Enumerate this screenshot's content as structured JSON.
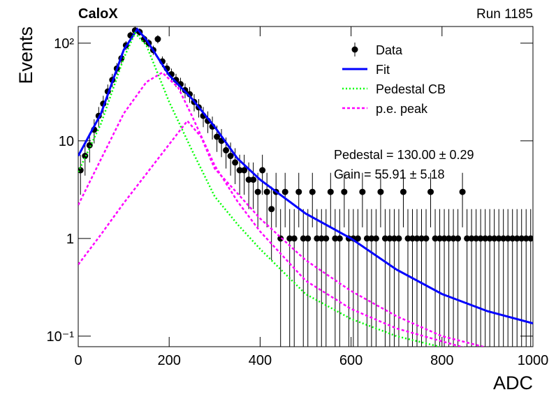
{
  "chart_data": {
    "type": "scatter",
    "title": "CaloX",
    "subtitle": "Run 1185",
    "x_label": "ADC",
    "y_label": "Events",
    "log_y": true,
    "xlim": [
      0,
      1000
    ],
    "xticks": [
      0,
      200,
      400,
      600,
      800,
      1000
    ],
    "ylim": [
      0.078,
      148
    ],
    "yticks": [
      {
        "value": 0.1,
        "label": "10⁻¹"
      },
      1,
      10,
      {
        "value": 100,
        "label": "10²"
      }
    ],
    "legend": "upper right",
    "annotations": [
      "Pedestal = 130.00 ± 0.29",
      "Gain = 55.91 ± 5.18"
    ],
    "series": [
      {
        "name": "Data",
        "type": "errorbar",
        "color": "#000000",
        "x": [
          5,
          15,
          25,
          35,
          45,
          55,
          65,
          75,
          85,
          95,
          105,
          115,
          125,
          135,
          145,
          155,
          165,
          175,
          185,
          195,
          205,
          215,
          225,
          235,
          245,
          255,
          265,
          275,
          285,
          295,
          305,
          315,
          325,
          335,
          345,
          355,
          365,
          375,
          385,
          395,
          405,
          415,
          425,
          435,
          445,
          455,
          465,
          475,
          485,
          495,
          505,
          515,
          525,
          535,
          545,
          555,
          565,
          575,
          585,
          595,
          605,
          615,
          625,
          635,
          645,
          655,
          665,
          675,
          685,
          695,
          705,
          715,
          725,
          735,
          745,
          755,
          765,
          775,
          785,
          795,
          805,
          815,
          825,
          835,
          845,
          855,
          865,
          875,
          885,
          895,
          905,
          915,
          925,
          935,
          945,
          955,
          965,
          975,
          985,
          995
        ],
        "values": [
          5,
          7,
          9,
          13,
          18,
          24,
          32,
          42,
          55,
          70,
          95,
          120,
          135,
          130,
          110,
          100,
          85,
          110,
          65,
          55,
          48,
          42,
          38,
          33,
          30,
          25,
          22,
          18,
          16,
          14,
          11,
          10,
          8,
          7,
          6,
          5,
          5,
          4,
          4,
          3,
          5,
          3,
          2,
          3,
          1,
          3,
          1,
          1,
          3,
          1,
          1,
          3,
          1,
          1,
          1,
          3,
          1,
          1,
          3,
          1,
          1,
          1,
          3,
          1,
          1,
          1,
          3,
          1,
          1,
          1,
          1,
          3,
          1,
          1,
          1,
          1,
          1,
          3,
          1,
          1,
          1,
          1,
          1,
          1,
          3,
          1,
          1,
          1,
          1,
          1,
          1,
          1,
          1,
          1,
          1,
          1,
          1,
          1,
          1,
          1
        ],
        "errors": [
          2.2,
          2.6,
          3,
          3.6,
          4.2,
          4.9,
          5.7,
          6.5,
          7.4,
          8.4,
          9.7,
          11,
          11.6,
          11.4,
          10.5,
          10,
          9.2,
          10.5,
          8.1,
          7.4,
          6.9,
          6.5,
          6.2,
          5.7,
          5.5,
          5,
          4.7,
          4.2,
          4,
          3.7,
          3.3,
          3.2,
          2.8,
          2.6,
          2.4,
          2.2,
          2.2,
          2,
          2,
          1.7,
          2.2,
          1.7,
          1.4,
          1.7,
          1,
          1.7,
          1,
          1,
          1.7,
          1,
          1,
          1.7,
          1,
          1,
          1,
          1.7,
          1,
          1,
          1.7,
          1,
          1,
          1,
          1.7,
          1,
          1,
          1,
          1.7,
          1,
          1,
          1,
          1,
          1.7,
          1,
          1,
          1,
          1,
          1,
          1.7,
          1,
          1,
          1,
          1,
          1,
          1,
          1.7,
          1,
          1,
          1,
          1,
          1,
          1,
          1,
          1,
          1,
          1,
          1,
          1,
          1,
          1,
          1
        ]
      },
      {
        "name": "Fit",
        "type": "line",
        "color": "#0000ff",
        "dash": "solid",
        "x": [
          0,
          50,
          100,
          130,
          150,
          200,
          250,
          300,
          350,
          400,
          500,
          600,
          700,
          800,
          900,
          1000
        ],
        "values": [
          7,
          19,
          85,
          139,
          108,
          47,
          27,
          13.9,
          6.6,
          4,
          1.8,
          1,
          0.48,
          0.27,
          0.18,
          0.135
        ]
      },
      {
        "name": "Pedestal CB",
        "type": "line",
        "color": "#00ff00",
        "dash": "dotted",
        "x": [
          0,
          50,
          100,
          125,
          150,
          200,
          250,
          300,
          350,
          400,
          500,
          600,
          700,
          800
        ],
        "values": [
          4.8,
          15,
          70,
          127,
          95,
          25,
          8,
          2.7,
          1.4,
          0.78,
          0.27,
          0.15,
          0.1,
          0.077
        ]
      },
      {
        "name": "p.e. peak",
        "type": "line",
        "color": "#ff00ff",
        "dash": "dashed",
        "curves": [
          {
            "x": [
              0,
              50,
              100,
              150,
              185,
              220,
              250,
              300,
              350,
              400,
              500,
              600,
              700,
              850
            ],
            "values": [
              2.2,
              6.5,
              19,
              40,
              50,
              35,
              18,
              5.6,
              2.4,
              1.18,
              0.37,
              0.19,
              0.12,
              0.076
            ]
          },
          {
            "x": [
              0,
              50,
              100,
              150,
              200,
              240,
              270,
              300,
              350,
              400,
              500,
              600,
              700,
              800,
              900
            ],
            "values": [
              0.54,
              1.1,
              2.3,
              4.6,
              9.2,
              16,
              11,
              5.2,
              2.9,
              1.6,
              0.6,
              0.29,
              0.16,
              0.1,
              0.076
            ]
          }
        ]
      }
    ]
  }
}
